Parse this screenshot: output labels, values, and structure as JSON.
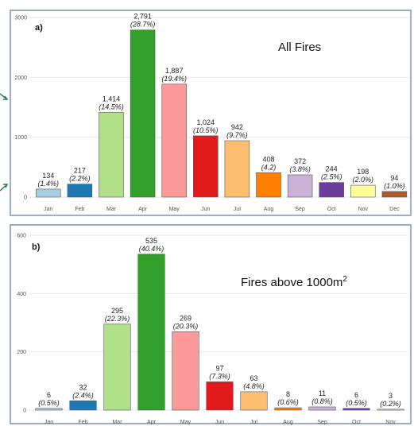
{
  "chart_data": [
    {
      "type": "bar",
      "panel_label": "a)",
      "title": "All Fires",
      "title_sup": "",
      "categories": [
        "Jan",
        "Feb",
        "Mar",
        "Apr",
        "May",
        "Jun",
        "Jul",
        "Aug",
        "Sep",
        "Oct",
        "Nov",
        "Dec"
      ],
      "values": [
        134,
        217,
        1414,
        2791,
        1887,
        1024,
        942,
        408,
        372,
        244,
        198,
        94
      ],
      "value_labels": [
        "134",
        "217",
        "1,414",
        "2,791",
        "1,887",
        "1,024",
        "942",
        "408",
        "372",
        "244",
        "198",
        "94"
      ],
      "percent_labels": [
        "(1.4%)",
        "(2.2%)",
        "(14.5%)",
        "(28.7%)",
        "(19.4%)",
        "(10.5%)",
        "(9.7%)",
        "(4.2)",
        "(3.8%)",
        "(2.5%)",
        "(2.0%)",
        "(1.0%)"
      ],
      "colors": [
        "#a6cee3",
        "#1f78b4",
        "#b2df8a",
        "#33a02c",
        "#fb9a99",
        "#e31a1c",
        "#fdbf6f",
        "#ff7f00",
        "#cab2d6",
        "#6a3d9a",
        "#ffff99",
        "#b15928"
      ],
      "ylim": [
        0,
        3000
      ],
      "yticks": [
        0,
        1000,
        2000,
        3000
      ],
      "xlabel": "",
      "ylabel": "",
      "grid": true
    },
    {
      "type": "bar",
      "panel_label": "b)",
      "title": "Fires above 1000m",
      "title_sup": "2",
      "categories": [
        "Jan",
        "Feb",
        "Mar",
        "Apr",
        "May",
        "Jun",
        "Jul",
        "Aug",
        "Sep",
        "Oct",
        "Nov"
      ],
      "values": [
        6,
        32,
        295,
        535,
        269,
        97,
        63,
        8,
        11,
        6,
        3
      ],
      "value_labels": [
        "6",
        "32",
        "295",
        "535",
        "269",
        "97",
        "63",
        "8",
        "11",
        "6",
        "3"
      ],
      "percent_labels": [
        "(0.5%)",
        "(2.4%)",
        "(22.3%)",
        "(40.4%)",
        "(20.3%)",
        "(7.3%)",
        "(4.8%)",
        "(0.6%)",
        "(0.8%)",
        "(0.5%)",
        "(0.2%)"
      ],
      "colors": [
        "#a6cee3",
        "#1f78b4",
        "#b2df8a",
        "#33a02c",
        "#fb9a99",
        "#e31a1c",
        "#fdbf6f",
        "#ff7f00",
        "#cab2d6",
        "#6a3d9a",
        "#ffff99"
      ],
      "ylim": [
        0,
        600
      ],
      "yticks": [
        0,
        200,
        400,
        600
      ],
      "xlabel": "",
      "ylabel": "",
      "grid": true
    }
  ]
}
